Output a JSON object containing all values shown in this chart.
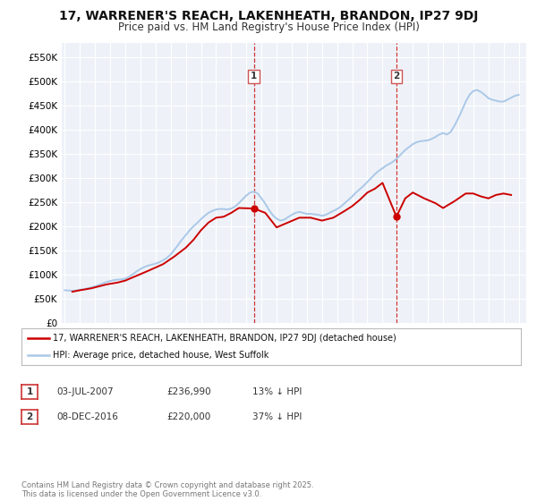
{
  "title": "17, WARRENER'S REACH, LAKENHEATH, BRANDON, IP27 9DJ",
  "subtitle": "Price paid vs. HM Land Registry's House Price Index (HPI)",
  "title_fontsize": 10,
  "subtitle_fontsize": 8.5,
  "ylabel_ticks": [
    "£0",
    "£50K",
    "£100K",
    "£150K",
    "£200K",
    "£250K",
    "£300K",
    "£350K",
    "£400K",
    "£450K",
    "£500K",
    "£550K"
  ],
  "ytick_vals": [
    0,
    50000,
    100000,
    150000,
    200000,
    250000,
    300000,
    350000,
    400000,
    450000,
    500000,
    550000
  ],
  "ylim": [
    0,
    580000
  ],
  "xlim_start": 1994.8,
  "xlim_end": 2025.5,
  "hpi_color": "#aac8e8",
  "price_color": "#cc0000",
  "vline_color": "#cc3333",
  "vline_style": "--",
  "marker1_x": 2007.5,
  "marker2_x": 2016.92,
  "marker1_price": 236990,
  "marker2_price": 220000,
  "bg_color": "#eef2f8",
  "grid_color": "#ffffff",
  "legend_entry1": "17, WARRENER'S REACH, LAKENHEATH, BRANDON, IP27 9DJ (detached house)",
  "legend_entry2": "HPI: Average price, detached house, West Suffolk",
  "table_row1": [
    "1",
    "03-JUL-2007",
    "£236,990",
    "13% ↓ HPI"
  ],
  "table_row2": [
    "2",
    "08-DEC-2016",
    "£220,000",
    "37% ↓ HPI"
  ],
  "footer": "Contains HM Land Registry data © Crown copyright and database right 2025.\nThis data is licensed under the Open Government Licence v3.0.",
  "hpi_data_years": [
    1995.0,
    1995.25,
    1995.5,
    1995.75,
    1996.0,
    1996.25,
    1996.5,
    1996.75,
    1997.0,
    1997.25,
    1997.5,
    1997.75,
    1998.0,
    1998.25,
    1998.5,
    1998.75,
    1999.0,
    1999.25,
    1999.5,
    1999.75,
    2000.0,
    2000.25,
    2000.5,
    2000.75,
    2001.0,
    2001.25,
    2001.5,
    2001.75,
    2002.0,
    2002.25,
    2002.5,
    2002.75,
    2003.0,
    2003.25,
    2003.5,
    2003.75,
    2004.0,
    2004.25,
    2004.5,
    2004.75,
    2005.0,
    2005.25,
    2005.5,
    2005.75,
    2006.0,
    2006.25,
    2006.5,
    2006.75,
    2007.0,
    2007.25,
    2007.5,
    2007.75,
    2008.0,
    2008.25,
    2008.5,
    2008.75,
    2009.0,
    2009.25,
    2009.5,
    2009.75,
    2010.0,
    2010.25,
    2010.5,
    2010.75,
    2011.0,
    2011.25,
    2011.5,
    2011.75,
    2012.0,
    2012.25,
    2012.5,
    2012.75,
    2013.0,
    2013.25,
    2013.5,
    2013.75,
    2014.0,
    2014.25,
    2014.5,
    2014.75,
    2015.0,
    2015.25,
    2015.5,
    2015.75,
    2016.0,
    2016.25,
    2016.5,
    2016.75,
    2017.0,
    2017.25,
    2017.5,
    2017.75,
    2018.0,
    2018.25,
    2018.5,
    2018.75,
    2019.0,
    2019.25,
    2019.5,
    2019.75,
    2020.0,
    2020.25,
    2020.5,
    2020.75,
    2021.0,
    2021.25,
    2021.5,
    2021.75,
    2022.0,
    2022.25,
    2022.5,
    2022.75,
    2023.0,
    2023.25,
    2023.5,
    2023.75,
    2024.0,
    2024.25,
    2024.5,
    2024.75,
    2025.0
  ],
  "hpi_data_values": [
    68000,
    67500,
    67000,
    67500,
    69000,
    70000,
    72000,
    74000,
    76000,
    79000,
    82000,
    85000,
    87000,
    89000,
    90000,
    90500,
    92000,
    96000,
    101000,
    107000,
    112000,
    116000,
    119000,
    121000,
    123000,
    126000,
    130000,
    135000,
    142000,
    152000,
    162000,
    173000,
    182000,
    192000,
    200000,
    207000,
    215000,
    222000,
    228000,
    232000,
    235000,
    236000,
    236000,
    235000,
    237000,
    241000,
    248000,
    256000,
    264000,
    270000,
    272000,
    268000,
    258000,
    247000,
    234000,
    223000,
    216000,
    212000,
    214000,
    219000,
    224000,
    228000,
    230000,
    228000,
    226000,
    226000,
    225000,
    224000,
    222000,
    224000,
    228000,
    232000,
    236000,
    241000,
    248000,
    255000,
    262000,
    270000,
    277000,
    284000,
    292000,
    300000,
    308000,
    315000,
    320000,
    326000,
    330000,
    335000,
    342000,
    350000,
    358000,
    364000,
    370000,
    374000,
    376000,
    377000,
    378000,
    381000,
    385000,
    390000,
    393000,
    390000,
    395000,
    408000,
    423000,
    440000,
    458000,
    472000,
    480000,
    482000,
    478000,
    472000,
    465000,
    462000,
    460000,
    458000,
    458000,
    462000,
    466000,
    470000,
    472000
  ],
  "price_data_years": [
    1995.5,
    1996.0,
    1996.75,
    1997.25,
    1997.75,
    1998.5,
    1999.0,
    1999.75,
    2000.5,
    2001.0,
    2001.5,
    2002.25,
    2003.0,
    2003.5,
    2004.0,
    2004.5,
    2005.0,
    2005.5,
    2006.0,
    2006.5,
    2007.5,
    2008.25,
    2009.0,
    2009.75,
    2010.5,
    2011.25,
    2012.0,
    2012.75,
    2013.5,
    2014.0,
    2014.5,
    2015.0,
    2015.5,
    2016.0,
    2016.92,
    2017.5,
    2018.0,
    2018.75,
    2019.5,
    2020.0,
    2020.75,
    2021.5,
    2022.0,
    2022.5,
    2023.0,
    2023.5,
    2024.0,
    2024.5
  ],
  "price_data_values": [
    65000,
    68000,
    72000,
    76000,
    80000,
    84000,
    88000,
    98000,
    108000,
    115000,
    122000,
    138000,
    156000,
    172000,
    192000,
    208000,
    218000,
    220000,
    228000,
    238000,
    236990,
    228000,
    198000,
    208000,
    218000,
    218000,
    212000,
    218000,
    232000,
    242000,
    255000,
    270000,
    278000,
    290000,
    220000,
    258000,
    270000,
    258000,
    248000,
    238000,
    252000,
    268000,
    268000,
    262000,
    258000,
    265000,
    268000,
    265000
  ]
}
